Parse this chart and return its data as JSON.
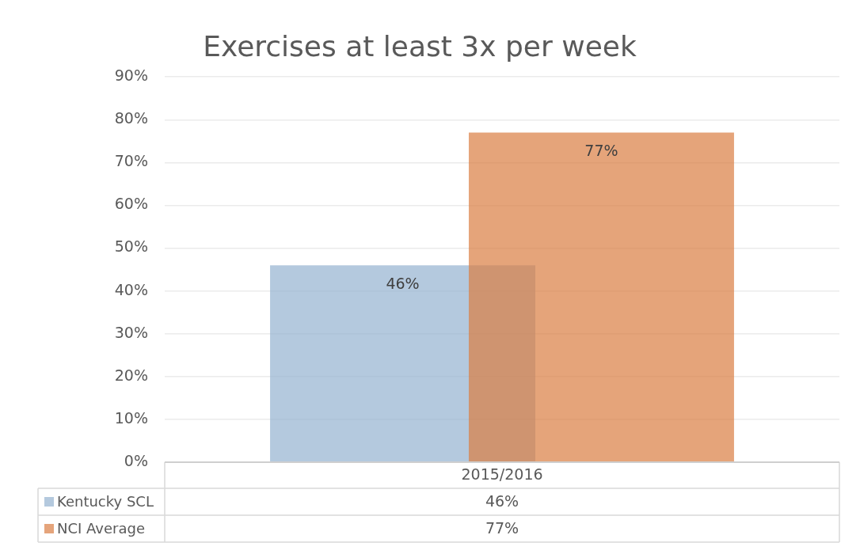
{
  "chart_data": {
    "type": "bar",
    "title": "Exercises at least 3x per week",
    "categories": [
      "2015/2016"
    ],
    "series": [
      {
        "name": "Kentucky SCL",
        "color": "#b4c9de",
        "values": [
          46
        ],
        "value_labels": [
          "46%"
        ]
      },
      {
        "name": "NCI Average",
        "color": "#e5a47b",
        "values": [
          77
        ],
        "value_labels": [
          "77%"
        ]
      }
    ],
    "ylim": [
      0,
      90
    ],
    "yticks": [
      {
        "value": 0,
        "label": "0%"
      },
      {
        "value": 10,
        "label": "10%"
      },
      {
        "value": 20,
        "label": "20%"
      },
      {
        "value": 30,
        "label": "30%"
      },
      {
        "value": 40,
        "label": "40%"
      },
      {
        "value": 50,
        "label": "50%"
      },
      {
        "value": 60,
        "label": "60%"
      },
      {
        "value": 70,
        "label": "70%"
      },
      {
        "value": 80,
        "label": "80%"
      },
      {
        "value": 90,
        "label": "90%"
      }
    ],
    "grid": "y",
    "legend": "bottom"
  }
}
